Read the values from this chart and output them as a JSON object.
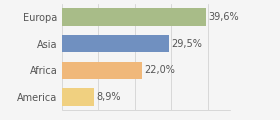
{
  "categories": [
    "America",
    "Africa",
    "Asia",
    "Europa"
  ],
  "values": [
    8.9,
    22.0,
    29.5,
    39.6
  ],
  "labels": [
    "8,9%",
    "22,0%",
    "29,5%",
    "39,6%"
  ],
  "bar_colors": [
    "#f0d080",
    "#f0b87a",
    "#7090c0",
    "#a8bc88"
  ],
  "background_color": "#f5f5f5",
  "xlim": [
    0,
    46
  ],
  "bar_height": 0.65,
  "label_fontsize": 7.0,
  "tick_fontsize": 7.0
}
